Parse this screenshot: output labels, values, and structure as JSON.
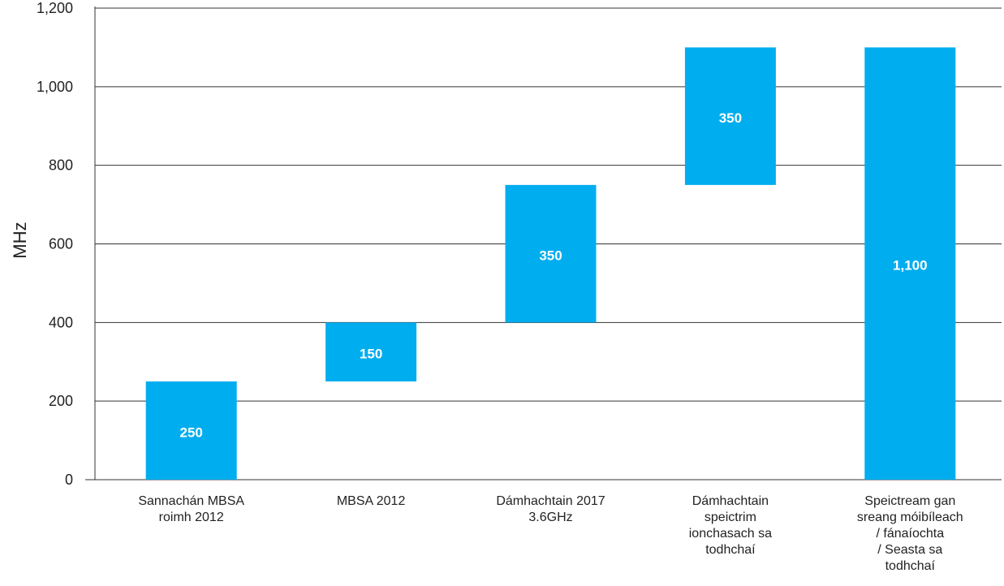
{
  "chart_data": {
    "type": "bar",
    "subtype": "waterfall",
    "ylabel": "MHz",
    "xlabel": "",
    "ylim": [
      0,
      1200
    ],
    "yticks": [
      0,
      200,
      400,
      600,
      800,
      1000,
      1200
    ],
    "ytick_labels": [
      "0",
      "200",
      "400",
      "600",
      "800",
      "1,000",
      "1,200"
    ],
    "grid": true,
    "bar_color": "#00ADEF",
    "bars": [
      {
        "category": [
          "Sannachán MBSA",
          "roimh 2012"
        ],
        "base": 0,
        "top": 250,
        "label": "250"
      },
      {
        "category": [
          "MBSA 2012"
        ],
        "base": 250,
        "top": 400,
        "label": "150"
      },
      {
        "category": [
          "Dámhachtain 2017",
          "3.6GHz"
        ],
        "base": 400,
        "top": 750,
        "label": "350"
      },
      {
        "category": [
          "Dámhachtain",
          "speictrim",
          "ionchasach sa",
          "todhchaí"
        ],
        "base": 750,
        "top": 1100,
        "label": "350"
      },
      {
        "category": [
          "Speictream gan",
          "sreang móibíleach",
          "/ fánaíochta",
          "/ Seasta sa",
          "todhchaí"
        ],
        "base": 0,
        "top": 1100,
        "label": "1,100"
      }
    ]
  }
}
